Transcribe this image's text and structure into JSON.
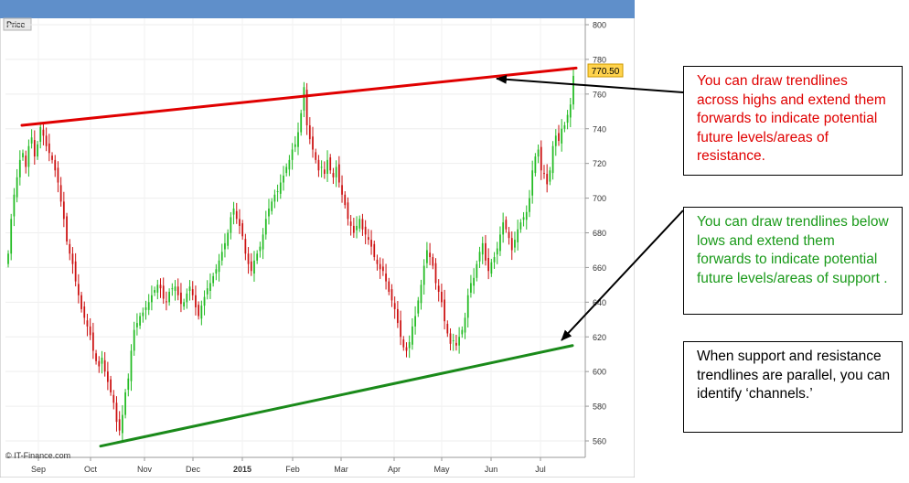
{
  "chart_data": {
    "type": "candlestick",
    "title": "",
    "ylabel": "Price",
    "ylim": [
      550,
      805
    ],
    "yticks": [
      560,
      580,
      600,
      620,
      640,
      660,
      680,
      700,
      720,
      740,
      760,
      780,
      800
    ],
    "xtick_labels": [
      "Sep",
      "Oct",
      "Nov",
      "Dec",
      "2015",
      "Feb",
      "Mar",
      "Apr",
      "May",
      "Jun",
      "Jul"
    ],
    "last_price": 770.5,
    "last_price_label": "770.50",
    "watermark": "© IT-Finance.com",
    "colors": {
      "up": "#22bb22",
      "down": "#cc1111"
    },
    "close_series": [
      668,
      688,
      702,
      712,
      722,
      726,
      718,
      730,
      735,
      724,
      731,
      741,
      736,
      730,
      726,
      722,
      716,
      709,
      698,
      688,
      675,
      668,
      662,
      652,
      644,
      636,
      631,
      626,
      621,
      612,
      606,
      603,
      608,
      600,
      594,
      588,
      582,
      571,
      566,
      575,
      588,
      596,
      612,
      624,
      628,
      632,
      634,
      637,
      640,
      644,
      647,
      650,
      648,
      642,
      640,
      646,
      648,
      649,
      644,
      639,
      640,
      645,
      649,
      644,
      637,
      632,
      638,
      643,
      648,
      651,
      655,
      659,
      664,
      669,
      674,
      680,
      689,
      694,
      688,
      684,
      678,
      668,
      662,
      658,
      664,
      668,
      672,
      679,
      688,
      694,
      698,
      702,
      704,
      709,
      713,
      718,
      722,
      728,
      731,
      738,
      749,
      764,
      742,
      734,
      728,
      722,
      716,
      718,
      714,
      722,
      716,
      712,
      718,
      709,
      702,
      696,
      688,
      684,
      680,
      684,
      688,
      682,
      679,
      676,
      672,
      666,
      662,
      659,
      658,
      652,
      646,
      641,
      636,
      628,
      620,
      614,
      612,
      617,
      626,
      632,
      641,
      650,
      661,
      670,
      666,
      661,
      651,
      646,
      640,
      629,
      622,
      616,
      618,
      615,
      620,
      624,
      631,
      644,
      651,
      654,
      662,
      669,
      674,
      664,
      658,
      663,
      666,
      671,
      679,
      686,
      682,
      677,
      670,
      676,
      682,
      686,
      689,
      692,
      700,
      716,
      724,
      728,
      716,
      714,
      708,
      716,
      730,
      736,
      733,
      740,
      742,
      748,
      754,
      770.5
    ],
    "trendlines": [
      {
        "name": "resistance",
        "color": "#e00000",
        "from": {
          "x": "Aug 28",
          "y": 742
        },
        "to": {
          "x": "Jul 20",
          "y": 775
        }
      },
      {
        "name": "support",
        "color": "#1a8a1a",
        "from": {
          "x": "Oct 12",
          "y": 557
        },
        "to": {
          "x": "Jul 20",
          "y": 615
        }
      }
    ]
  },
  "callouts": {
    "resistance": "You can draw trendlines across highs and extend them forwards to indicate potential future levels/areas of resistance.",
    "support": "You can draw trendlines below lows and extend them forwards to indicate potential future levels/areas of support .",
    "channels": "When support and resistance trendlines are parallel, you can identify ‘channels.’"
  }
}
